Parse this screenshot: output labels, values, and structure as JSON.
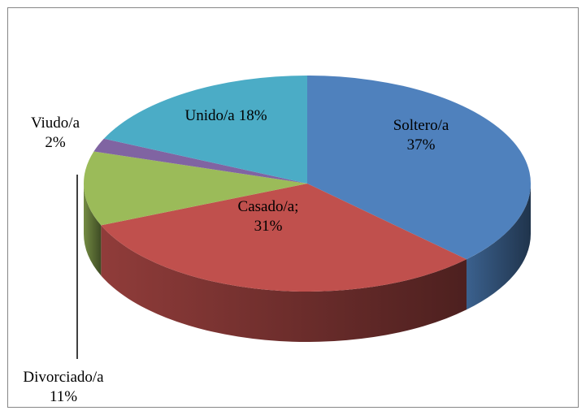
{
  "chart_data": {
    "type": "pie3d",
    "categories": [
      "Soltero/a",
      "Casado/a;",
      "Divorciado/a",
      "Viudo/a",
      "Unido/a"
    ],
    "values": [
      37,
      31,
      11,
      2,
      18
    ],
    "value_labels": [
      "37%",
      "31%",
      "11%",
      "2%",
      "18%"
    ],
    "colors": [
      "#4f81bd",
      "#c0504d",
      "#9bbb59",
      "#8064a2",
      "#4bacc6"
    ]
  }
}
